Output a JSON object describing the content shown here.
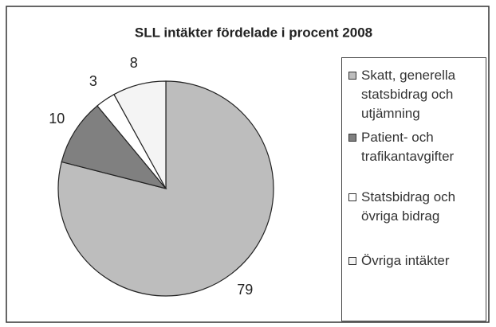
{
  "chart_data": {
    "type": "pie",
    "title": "SLL intäkter fördelade i procent 2008",
    "categories": [
      "Skatt, generella statsbidrag och utjämning",
      "Patient- och trafikantavgifter",
      "Statsbidrag och övriga bidrag",
      "Övriga intäkter"
    ],
    "values": [
      79,
      10,
      3,
      8
    ],
    "colors": [
      "#bdbdbd",
      "#808080",
      "#ffffff",
      "#f4f4f4"
    ],
    "legend": "right"
  }
}
